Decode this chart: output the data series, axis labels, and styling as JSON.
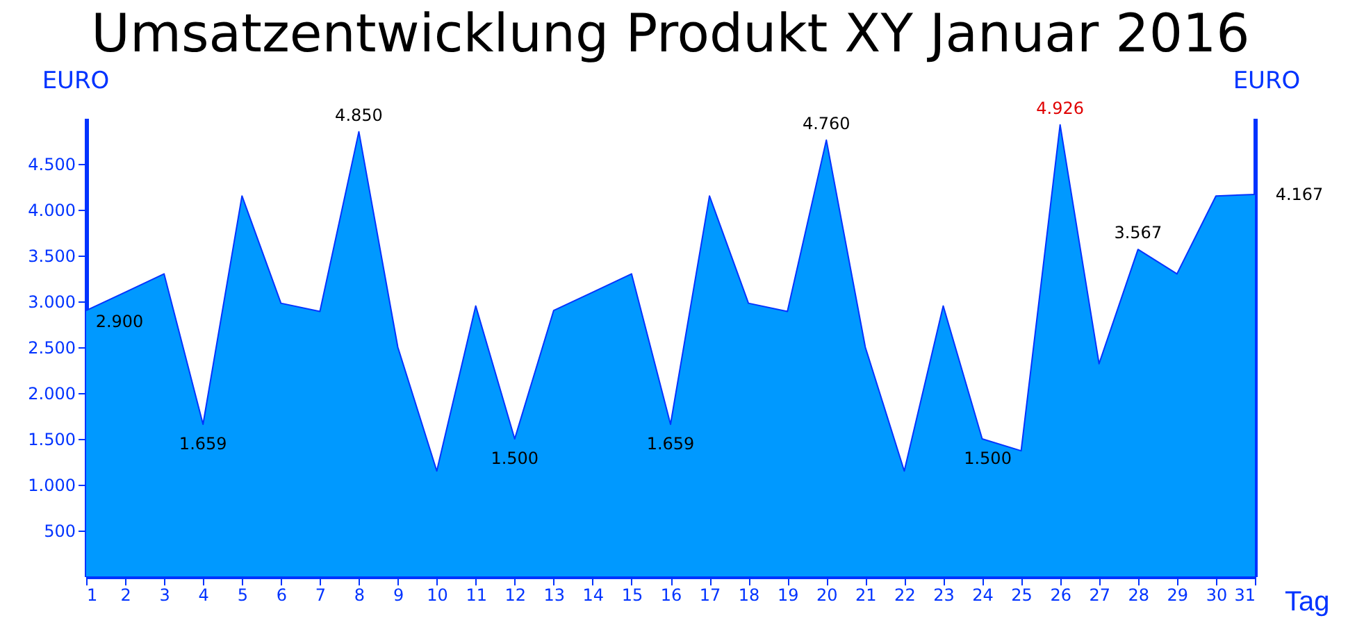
{
  "chart_data": {
    "type": "area",
    "title": "Umsatzentwicklung Produkt XY Januar 2016",
    "xlabel": "Tag",
    "ylabel": "EURO",
    "y2label": "EURO",
    "x": [
      1,
      2,
      3,
      4,
      5,
      6,
      7,
      8,
      9,
      10,
      11,
      12,
      13,
      14,
      15,
      16,
      17,
      18,
      19,
      20,
      21,
      22,
      23,
      24,
      25,
      26,
      27,
      28,
      29,
      30,
      31
    ],
    "series": [
      {
        "color": "#0099ff",
        "values": [
          2900,
          3100,
          3300,
          1659,
          4150,
          2980,
          2890,
          4850,
          2500,
          1150,
          2950,
          1500,
          2900,
          3100,
          3300,
          1659,
          4150,
          2980,
          2890,
          4760,
          2500,
          1150,
          2950,
          1500,
          1370,
          4926,
          2320,
          3567,
          3300,
          4150,
          4167
        ],
        "value_labels": [
          "2.900",
          null,
          null,
          "1.659",
          null,
          null,
          null,
          "4.850",
          null,
          null,
          null,
          "1.500",
          null,
          null,
          null,
          "1.659",
          null,
          null,
          null,
          "4.760",
          null,
          null,
          null,
          "1.500",
          null,
          "4.926",
          null,
          "3.567",
          null,
          null,
          "4.167"
        ]
      }
    ],
    "xlim": [
      1,
      31
    ],
    "xticks": [
      1,
      2,
      3,
      4,
      5,
      6,
      7,
      8,
      9,
      10,
      11,
      12,
      13,
      14,
      15,
      16,
      17,
      18,
      19,
      20,
      21,
      22,
      23,
      24,
      25,
      26,
      27,
      28,
      29,
      30,
      31
    ],
    "ylim": [
      0,
      5000
    ],
    "yticks": [
      {
        "value": 500,
        "label": "500"
      },
      {
        "value": 1000,
        "label": "1.000"
      },
      {
        "value": 1500,
        "label": "1.500"
      },
      {
        "value": 2000,
        "label": "2.000"
      },
      {
        "value": 2500,
        "label": "2.500"
      },
      {
        "value": 3000,
        "label": "3.000"
      },
      {
        "value": 3500,
        "label": "3.500"
      },
      {
        "value": 4000,
        "label": "4.000"
      },
      {
        "value": 4500,
        "label": "4.500"
      }
    ],
    "grid": false
  }
}
